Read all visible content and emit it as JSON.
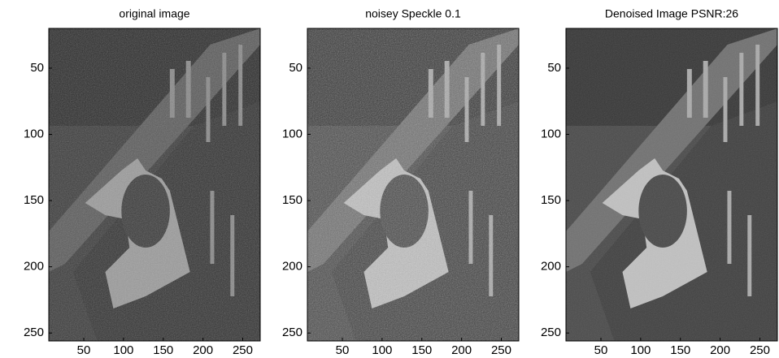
{
  "chart_data": [
    {
      "type": "image",
      "title": "original image",
      "xlim": [
        6,
        272
      ],
      "ylim": [
        20,
        256
      ],
      "xticks": [
        50,
        100,
        150,
        200,
        250
      ],
      "yticks": [
        50,
        100,
        150,
        200,
        250
      ]
    },
    {
      "type": "image",
      "title": "noisey Speckle 0.1",
      "xlim": [
        6,
        272
      ],
      "ylim": [
        20,
        256
      ],
      "xticks": [
        50,
        100,
        150,
        200,
        250
      ],
      "yticks": [
        50,
        100,
        150,
        200,
        250
      ]
    },
    {
      "type": "image",
      "title": "Denoised Image PSNR:26",
      "xlim": [
        6,
        272
      ],
      "ylim": [
        20,
        256
      ],
      "xticks": [
        50,
        100,
        150,
        200,
        250
      ],
      "yticks": [
        50,
        100,
        150,
        200,
        250
      ]
    }
  ]
}
